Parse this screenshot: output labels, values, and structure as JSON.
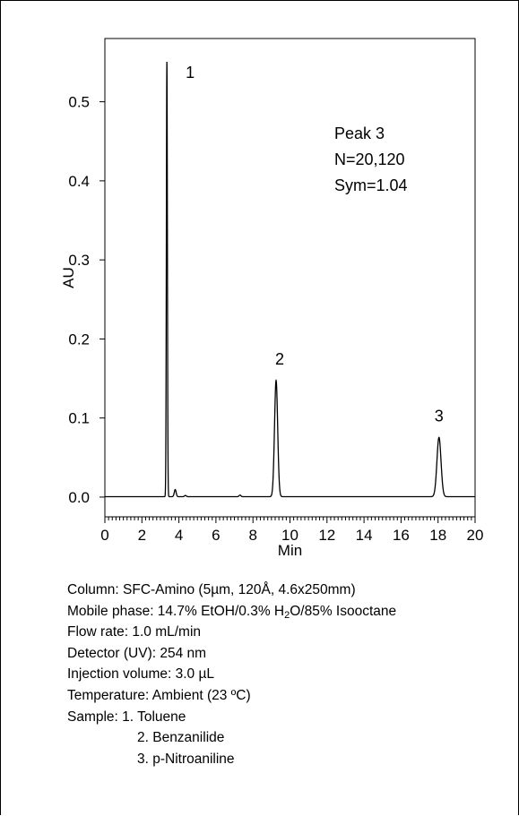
{
  "chart_data": {
    "type": "line",
    "xlabel": "Min",
    "ylabel": "AU",
    "xlim": [
      0,
      20
    ],
    "ylim": [
      -0.025,
      0.58
    ],
    "x_ticks": [
      "0",
      "2",
      "4",
      "6",
      "8",
      "10",
      "12",
      "14",
      "16",
      "18",
      "20"
    ],
    "y_ticks": [
      "0.0",
      "0.1",
      "0.2",
      "0.3",
      "0.4",
      "0.5"
    ],
    "peaks": [
      {
        "label": "1",
        "x": 3.35,
        "height": 0.55
      },
      {
        "label": "2",
        "x": 9.25,
        "height": 0.147
      },
      {
        "label": "3",
        "x": 18.05,
        "height": 0.075
      }
    ],
    "minor_peaks": [
      {
        "x": 3.8,
        "height": 0.009
      },
      {
        "x": 4.35,
        "height": 0.0015
      },
      {
        "x": 7.3,
        "height": 0.002
      }
    ],
    "baseline": 0.0005,
    "annotation": [
      "Peak 3",
      "N=20,120",
      "Sym=1.04"
    ]
  },
  "conditions": {
    "column": "Column: SFC-Amino (5µm, 120Å, 4.6x250mm)",
    "mobile_phase_pre": "Mobile phase: 14.7% EtOH/0.3% H",
    "mobile_phase_sub": "2",
    "mobile_phase_post": "O/85% Isooctane",
    "flow_rate": "Flow rate: 1.0 mL/min",
    "detector": "Detector (UV): 254 nm",
    "injection": "Injection volume: 3.0 µL",
    "temperature": "Temperature: Ambient (23 ºC)",
    "sample_title": "Sample: 1. Toluene",
    "sample_2": "2. Benzanilide",
    "sample_3": "3. p-Nitroaniline"
  }
}
